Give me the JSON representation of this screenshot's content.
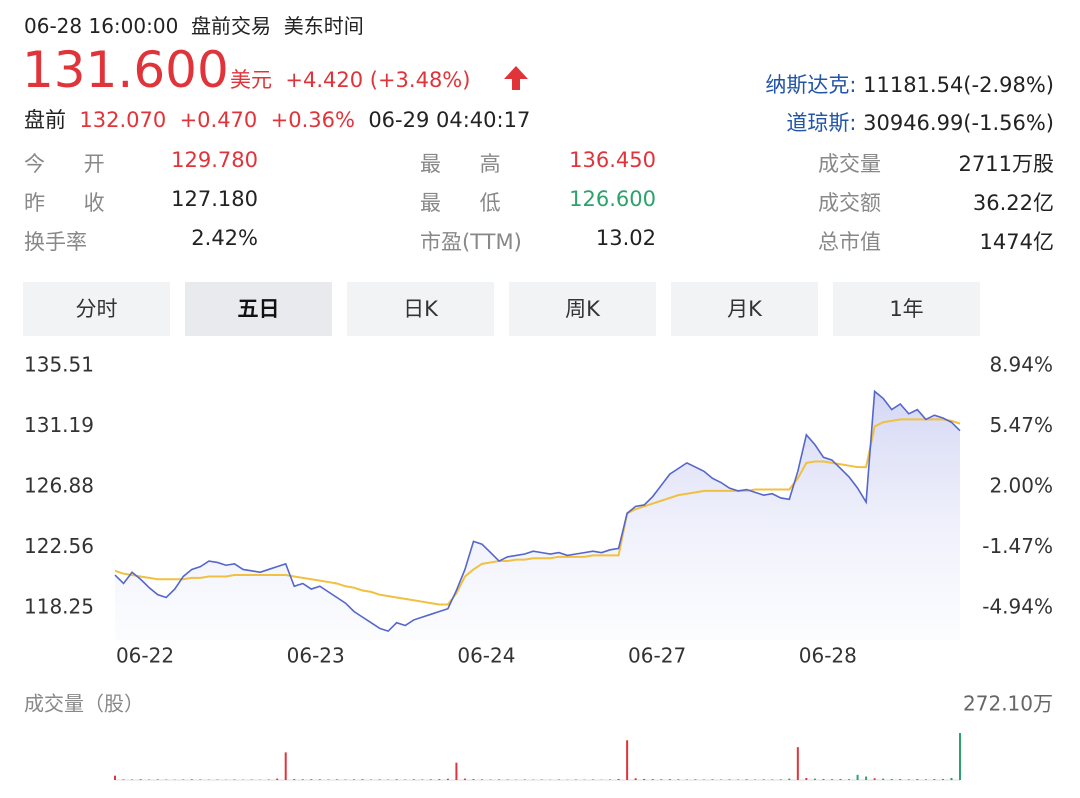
{
  "header": {
    "time": "06-28 16:00:00",
    "session": "盘前交易",
    "timezone": "美东时间",
    "price": "131.600",
    "currency": "美元",
    "change": "+4.420",
    "change_pct": "(+3.48%)",
    "pre_label": "盘前",
    "pre_price": "132.070",
    "pre_change": "+0.470",
    "pre_change_pct": "+0.36%",
    "pre_time": "06-29 04:40:17"
  },
  "indices": [
    {
      "label": "纳斯达克:",
      "value": "11181.54(-2.98%)"
    },
    {
      "label": "道琼斯:",
      "value": "30946.99(-1.56%)"
    }
  ],
  "stats": [
    [
      {
        "label": "今 开",
        "value": "129.780"
      },
      {
        "label": "最 高",
        "value": "136.450"
      },
      {
        "label": "成交量",
        "value": "2711万股"
      }
    ],
    [
      {
        "label": "昨 收",
        "value": "127.180"
      },
      {
        "label": "最 低",
        "value": "126.600"
      },
      {
        "label": "成交额",
        "value": "36.22亿"
      }
    ],
    [
      {
        "label": "换手率",
        "value": "2.42%"
      },
      {
        "label": "市盈(TTM)",
        "value": "13.02"
      },
      {
        "label": "总市值",
        "value": "1474亿"
      }
    ]
  ],
  "tabs": [
    "分时",
    "五日",
    "日K",
    "周K",
    "月K",
    "1年"
  ],
  "chart_data": {
    "type": "line",
    "x_labels": [
      "06-22",
      "06-23",
      "06-24",
      "06-27",
      "06-28"
    ],
    "series": [
      {
        "color": "#5566cc",
        "values": [
          120.6,
          120.0,
          120.8,
          120.3,
          119.7,
          119.2,
          119.0,
          119.6,
          120.5,
          121.0,
          121.2,
          121.6,
          121.5,
          121.3,
          121.4,
          121.0,
          120.9,
          120.8,
          121.0,
          121.2,
          121.4,
          119.8,
          120.0,
          119.6,
          119.8,
          119.4,
          119.0,
          118.6,
          118.0,
          117.6,
          117.2,
          116.8,
          116.6,
          117.2,
          117.0,
          117.4,
          117.6,
          117.8,
          118.0,
          118.2,
          119.5,
          121.0,
          123.0,
          122.8,
          122.2,
          121.6,
          121.9,
          122.0,
          122.1,
          122.3,
          122.2,
          122.1,
          122.2,
          122.0,
          122.1,
          122.2,
          122.3,
          122.2,
          122.4,
          122.5,
          125.0,
          125.5,
          125.6,
          126.2,
          127.0,
          127.8,
          128.2,
          128.6,
          128.3,
          128.0,
          127.5,
          127.2,
          126.8,
          126.6,
          126.7,
          126.5,
          126.3,
          126.4,
          126.1,
          126.0,
          128.0,
          130.6,
          129.9,
          129.0,
          128.8,
          128.2,
          127.6,
          126.8,
          125.8,
          133.7,
          133.2,
          132.4,
          132.8,
          132.1,
          132.4,
          131.7,
          132.0,
          131.8,
          131.5,
          130.9
        ]
      },
      {
        "color": "#f0c040",
        "values": [
          120.9,
          120.7,
          120.6,
          120.5,
          120.4,
          120.3,
          120.3,
          120.3,
          120.3,
          120.4,
          120.4,
          120.5,
          120.5,
          120.5,
          120.6,
          120.6,
          120.6,
          120.6,
          120.6,
          120.6,
          120.6,
          120.5,
          120.4,
          120.3,
          120.2,
          120.1,
          120.0,
          119.8,
          119.7,
          119.5,
          119.4,
          119.2,
          119.1,
          119.0,
          118.9,
          118.8,
          118.7,
          118.6,
          118.5,
          118.5,
          119.3,
          120.5,
          121.0,
          121.4,
          121.5,
          121.6,
          121.6,
          121.7,
          121.7,
          121.8,
          121.8,
          121.8,
          121.9,
          121.9,
          121.9,
          121.9,
          122.0,
          122.0,
          122.0,
          122.0,
          125.0,
          125.3,
          125.5,
          125.7,
          125.9,
          126.1,
          126.3,
          126.4,
          126.5,
          126.6,
          126.6,
          126.6,
          126.6,
          126.6,
          126.6,
          126.7,
          126.7,
          126.7,
          126.7,
          126.7,
          127.5,
          128.6,
          128.7,
          128.7,
          128.6,
          128.5,
          128.4,
          128.3,
          128.3,
          131.2,
          131.5,
          131.6,
          131.7,
          131.7,
          131.7,
          131.7,
          131.7,
          131.7,
          131.6,
          131.4
        ]
      }
    ],
    "ylim": [
      118.25,
      135.51
    ],
    "yticks": [
      118.25,
      122.56,
      126.88,
      131.19,
      135.51
    ],
    "y2lim": [
      -4.94,
      8.94
    ],
    "y2ticks": [
      {
        "value": -4.94,
        "label": "-4.94%"
      },
      {
        "value": -1.47,
        "label": "-1.47%"
      },
      {
        "value": 2.0,
        "label": "2.00%"
      },
      {
        "value": 5.47,
        "label": "5.47%"
      },
      {
        "value": 8.94,
        "label": "8.94%"
      }
    ]
  },
  "volume": {
    "title": "成交量（股）",
    "yticks": [
      {
        "value": 272.1,
        "label": "272.10万"
      }
    ],
    "values": [
      25,
      4,
      3,
      5,
      3,
      4,
      3,
      2,
      3,
      4,
      3,
      2,
      3,
      2,
      3,
      2,
      3,
      2,
      3,
      8,
      160,
      6,
      4,
      5,
      4,
      3,
      4,
      3,
      4,
      5,
      3,
      4,
      3,
      4,
      3,
      4,
      3,
      4,
      5,
      7,
      100,
      8,
      5,
      4,
      3,
      4,
      3,
      2,
      3,
      2,
      3,
      2,
      3,
      2,
      3,
      2,
      3,
      2,
      3,
      6,
      230,
      10,
      6,
      5,
      4,
      5,
      4,
      3,
      4,
      3,
      4,
      3,
      4,
      3,
      4,
      3,
      4,
      3,
      4,
      8,
      190,
      12,
      8,
      6,
      5,
      6,
      5,
      30,
      20,
      10,
      8,
      6,
      5,
      4,
      5,
      4,
      5,
      6,
      12,
      272.1
    ]
  }
}
